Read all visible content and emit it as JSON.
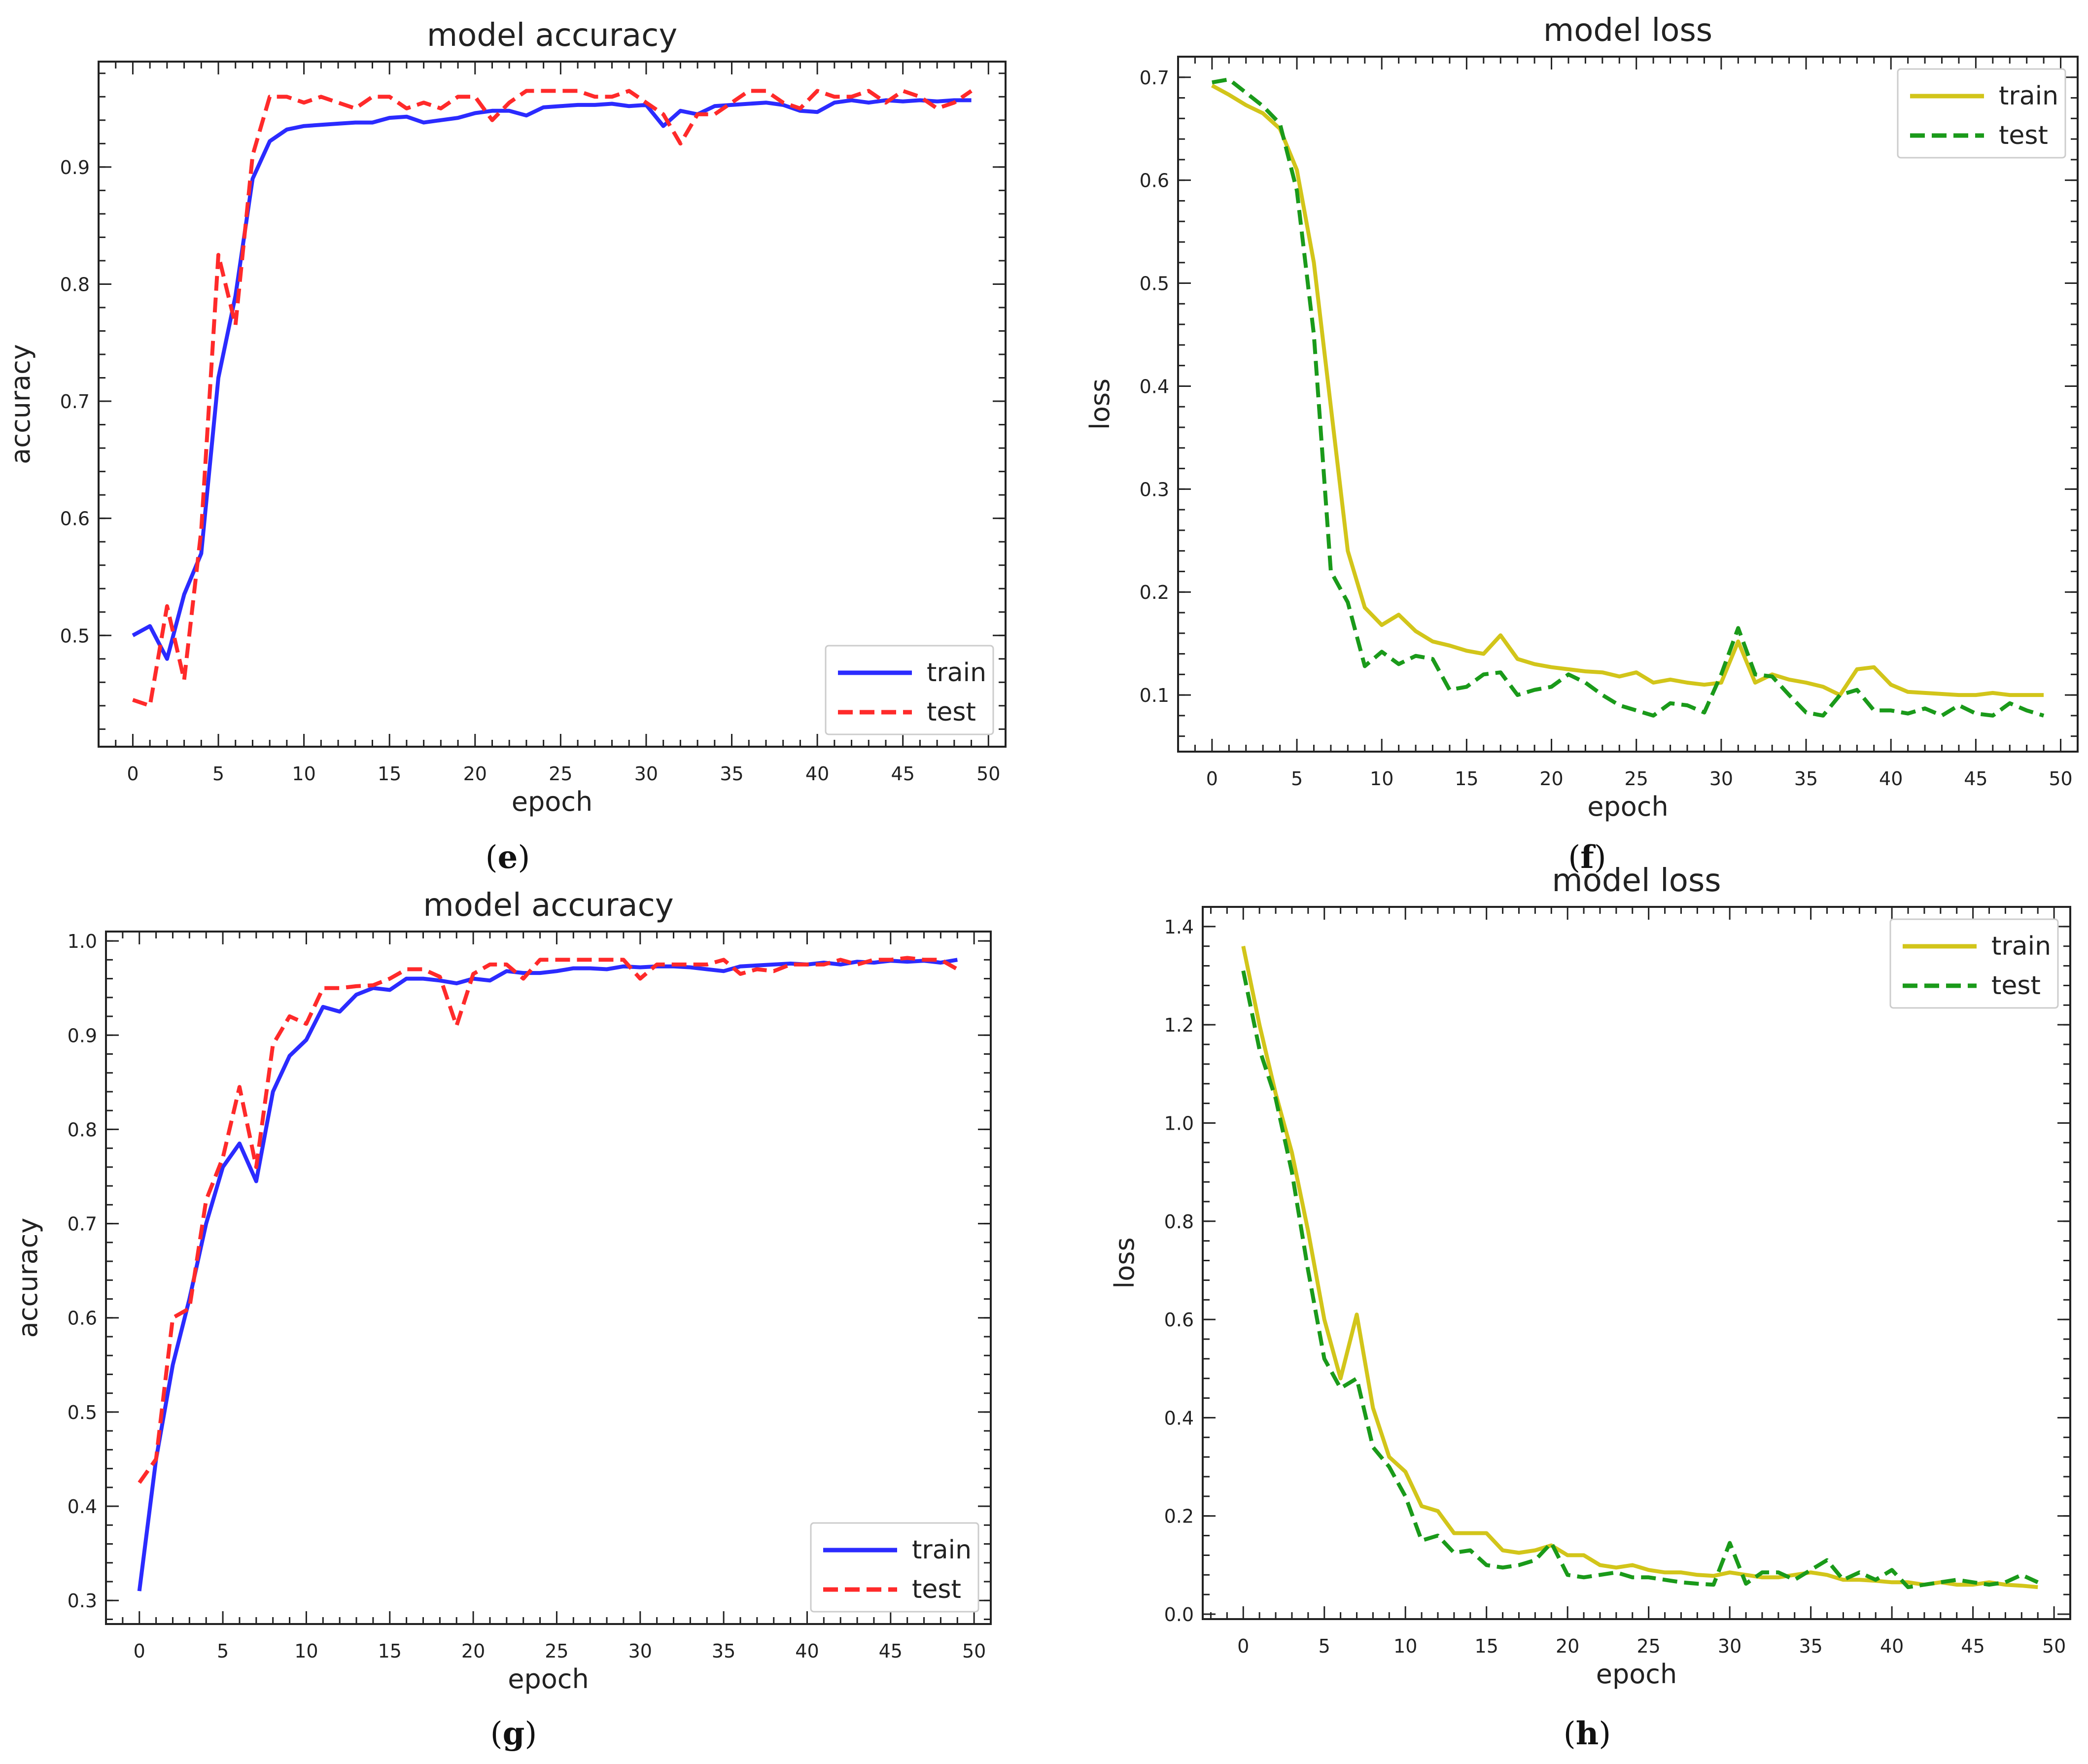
{
  "captions": {
    "e": "e",
    "f": "f",
    "g": "g",
    "h": "h"
  },
  "colors": {
    "acc_train": "#2b2bff",
    "acc_test": "#ff2a2a",
    "loss_train": "#d2c51a",
    "loss_test": "#1a9a1a"
  },
  "chart_data": [
    {
      "id": "e",
      "type": "line",
      "title": "model accuracy",
      "xlabel": "epoch",
      "ylabel": "accuracy",
      "xlim": [
        -2,
        51
      ],
      "ylim": [
        0.405,
        0.99
      ],
      "xticks": [
        0,
        5,
        10,
        15,
        20,
        25,
        30,
        35,
        40,
        45,
        50
      ],
      "yticks": [
        0.5,
        0.6,
        0.7,
        0.8,
        0.9
      ],
      "legend": "lower-right",
      "grid": false,
      "x": [
        0,
        1,
        2,
        3,
        4,
        5,
        6,
        7,
        8,
        9,
        10,
        11,
        12,
        13,
        14,
        15,
        16,
        17,
        18,
        19,
        20,
        21,
        22,
        23,
        24,
        25,
        26,
        27,
        28,
        29,
        30,
        31,
        32,
        33,
        34,
        35,
        36,
        37,
        38,
        39,
        40,
        41,
        42,
        43,
        44,
        45,
        46,
        47,
        48,
        49
      ],
      "series": [
        {
          "name": "train",
          "style": "solid",
          "color": "#2b2bff",
          "values": [
            0.5,
            0.508,
            0.48,
            0.535,
            0.57,
            0.72,
            0.79,
            0.89,
            0.922,
            0.932,
            0.935,
            0.936,
            0.937,
            0.938,
            0.938,
            0.942,
            0.943,
            0.938,
            0.94,
            0.942,
            0.946,
            0.948,
            0.948,
            0.944,
            0.951,
            0.952,
            0.953,
            0.953,
            0.954,
            0.952,
            0.953,
            0.935,
            0.948,
            0.945,
            0.952,
            0.953,
            0.954,
            0.955,
            0.953,
            0.948,
            0.947,
            0.955,
            0.957,
            0.955,
            0.957,
            0.956,
            0.957,
            0.956,
            0.957,
            0.957
          ]
        },
        {
          "name": "test",
          "style": "dashed",
          "color": "#ff2a2a",
          "values": [
            0.445,
            0.44,
            0.525,
            0.462,
            0.59,
            0.825,
            0.765,
            0.91,
            0.96,
            0.96,
            0.955,
            0.96,
            0.955,
            0.95,
            0.96,
            0.96,
            0.95,
            0.955,
            0.95,
            0.96,
            0.96,
            0.94,
            0.955,
            0.965,
            0.965,
            0.965,
            0.965,
            0.96,
            0.96,
            0.965,
            0.955,
            0.945,
            0.92,
            0.945,
            0.945,
            0.955,
            0.965,
            0.965,
            0.955,
            0.95,
            0.965,
            0.96,
            0.96,
            0.965,
            0.955,
            0.965,
            0.96,
            0.95,
            0.955,
            0.965
          ]
        }
      ]
    },
    {
      "id": "f",
      "type": "line",
      "title": "model loss",
      "xlabel": "epoch",
      "ylabel": "loss",
      "xlim": [
        -2,
        51
      ],
      "ylim": [
        0.045,
        0.72
      ],
      "xticks": [
        0,
        5,
        10,
        15,
        20,
        25,
        30,
        35,
        40,
        45,
        50
      ],
      "yticks": [
        0.1,
        0.2,
        0.3,
        0.4,
        0.5,
        0.6,
        0.7
      ],
      "legend": "top-right",
      "grid": false,
      "x": [
        0,
        1,
        2,
        3,
        4,
        5,
        6,
        7,
        8,
        9,
        10,
        11,
        12,
        13,
        14,
        15,
        16,
        17,
        18,
        19,
        20,
        21,
        22,
        23,
        24,
        25,
        26,
        27,
        28,
        29,
        30,
        31,
        32,
        33,
        34,
        35,
        36,
        37,
        38,
        39,
        40,
        41,
        42,
        43,
        44,
        45,
        46,
        47,
        48,
        49
      ],
      "series": [
        {
          "name": "train",
          "style": "solid",
          "color": "#d2c51a",
          "values": [
            0.692,
            0.683,
            0.673,
            0.665,
            0.65,
            0.61,
            0.52,
            0.38,
            0.24,
            0.185,
            0.168,
            0.178,
            0.162,
            0.152,
            0.148,
            0.143,
            0.14,
            0.158,
            0.135,
            0.13,
            0.127,
            0.125,
            0.123,
            0.122,
            0.118,
            0.122,
            0.112,
            0.115,
            0.112,
            0.11,
            0.112,
            0.152,
            0.112,
            0.12,
            0.115,
            0.112,
            0.108,
            0.1,
            0.125,
            0.127,
            0.11,
            0.103,
            0.102,
            0.101,
            0.1,
            0.1,
            0.102,
            0.1,
            0.1,
            0.1
          ]
        },
        {
          "name": "test",
          "style": "dashed",
          "color": "#1a9a1a",
          "values": [
            0.695,
            0.698,
            0.685,
            0.672,
            0.655,
            0.59,
            0.45,
            0.22,
            0.19,
            0.128,
            0.142,
            0.13,
            0.138,
            0.135,
            0.105,
            0.108,
            0.12,
            0.122,
            0.1,
            0.105,
            0.108,
            0.12,
            0.112,
            0.1,
            0.09,
            0.085,
            0.08,
            0.092,
            0.09,
            0.083,
            0.12,
            0.165,
            0.12,
            0.118,
            0.1,
            0.083,
            0.08,
            0.1,
            0.105,
            0.085,
            0.085,
            0.082,
            0.087,
            0.08,
            0.09,
            0.082,
            0.08,
            0.092,
            0.085,
            0.08
          ]
        }
      ]
    },
    {
      "id": "g",
      "type": "line",
      "title": "model accuracy",
      "xlabel": "epoch",
      "ylabel": "accuracy",
      "xlim": [
        -2,
        51
      ],
      "ylim": [
        0.275,
        1.01
      ],
      "xticks": [
        0,
        5,
        10,
        15,
        20,
        25,
        30,
        35,
        40,
        45,
        50
      ],
      "yticks": [
        0.3,
        0.4,
        0.5,
        0.6,
        0.7,
        0.8,
        0.9,
        1.0
      ],
      "legend": "lower-right",
      "grid": false,
      "x": [
        0,
        1,
        2,
        3,
        4,
        5,
        6,
        7,
        8,
        9,
        10,
        11,
        12,
        13,
        14,
        15,
        16,
        17,
        18,
        19,
        20,
        21,
        22,
        23,
        24,
        25,
        26,
        27,
        28,
        29,
        30,
        31,
        32,
        33,
        34,
        35,
        36,
        37,
        38,
        39,
        40,
        41,
        42,
        43,
        44,
        45,
        46,
        47,
        48,
        49
      ],
      "series": [
        {
          "name": "train",
          "style": "solid",
          "color": "#2b2bff",
          "values": [
            0.31,
            0.45,
            0.55,
            0.62,
            0.7,
            0.76,
            0.785,
            0.745,
            0.84,
            0.878,
            0.895,
            0.93,
            0.925,
            0.943,
            0.95,
            0.948,
            0.96,
            0.96,
            0.958,
            0.955,
            0.96,
            0.958,
            0.968,
            0.966,
            0.966,
            0.968,
            0.971,
            0.971,
            0.97,
            0.973,
            0.972,
            0.973,
            0.973,
            0.972,
            0.97,
            0.968,
            0.973,
            0.974,
            0.975,
            0.976,
            0.975,
            0.977,
            0.975,
            0.978,
            0.977,
            0.979,
            0.978,
            0.979,
            0.977,
            0.98
          ]
        },
        {
          "name": "test",
          "style": "dashed",
          "color": "#ff2a2a",
          "values": [
            0.425,
            0.45,
            0.6,
            0.61,
            0.725,
            0.77,
            0.845,
            0.76,
            0.89,
            0.92,
            0.912,
            0.95,
            0.95,
            0.952,
            0.953,
            0.96,
            0.97,
            0.97,
            0.962,
            0.91,
            0.965,
            0.975,
            0.975,
            0.96,
            0.98,
            0.98,
            0.98,
            0.98,
            0.98,
            0.98,
            0.96,
            0.975,
            0.975,
            0.975,
            0.975,
            0.98,
            0.965,
            0.97,
            0.968,
            0.975,
            0.975,
            0.975,
            0.98,
            0.975,
            0.98,
            0.98,
            0.982,
            0.98,
            0.98,
            0.97
          ]
        }
      ]
    },
    {
      "id": "h",
      "type": "line",
      "title": "model loss",
      "xlabel": "epoch",
      "ylabel": "loss",
      "xlim": [
        -2.5,
        51
      ],
      "ylim": [
        -0.01,
        1.44
      ],
      "xticks": [
        0,
        5,
        10,
        15,
        20,
        25,
        30,
        35,
        40,
        45,
        50
      ],
      "yticks": [
        0.0,
        0.2,
        0.4,
        0.6,
        0.8,
        1.0,
        1.2,
        1.4
      ],
      "legend": "top-right",
      "grid": false,
      "x": [
        0,
        1,
        2,
        3,
        4,
        5,
        6,
        7,
        8,
        9,
        10,
        11,
        12,
        13,
        14,
        15,
        16,
        17,
        18,
        19,
        20,
        21,
        22,
        23,
        24,
        25,
        26,
        27,
        28,
        29,
        30,
        31,
        32,
        33,
        34,
        35,
        36,
        37,
        38,
        39,
        40,
        41,
        42,
        43,
        44,
        45,
        46,
        47,
        48,
        49
      ],
      "series": [
        {
          "name": "train",
          "style": "solid",
          "color": "#d2c51a",
          "values": [
            1.36,
            1.2,
            1.06,
            0.94,
            0.78,
            0.6,
            0.48,
            0.61,
            0.42,
            0.32,
            0.29,
            0.22,
            0.21,
            0.165,
            0.165,
            0.165,
            0.13,
            0.125,
            0.13,
            0.14,
            0.12,
            0.12,
            0.1,
            0.095,
            0.1,
            0.09,
            0.085,
            0.085,
            0.08,
            0.078,
            0.085,
            0.08,
            0.075,
            0.075,
            0.08,
            0.085,
            0.08,
            0.07,
            0.07,
            0.068,
            0.065,
            0.065,
            0.06,
            0.065,
            0.06,
            0.06,
            0.065,
            0.06,
            0.058,
            0.055
          ]
        },
        {
          "name": "test",
          "style": "dashed",
          "color": "#1a9a1a",
          "values": [
            1.31,
            1.15,
            1.05,
            0.9,
            0.7,
            0.52,
            0.46,
            0.48,
            0.34,
            0.3,
            0.24,
            0.15,
            0.16,
            0.125,
            0.13,
            0.1,
            0.095,
            0.1,
            0.11,
            0.145,
            0.08,
            0.075,
            0.08,
            0.085,
            0.075,
            0.075,
            0.07,
            0.065,
            0.062,
            0.06,
            0.145,
            0.062,
            0.085,
            0.085,
            0.07,
            0.09,
            0.11,
            0.07,
            0.085,
            0.07,
            0.09,
            0.055,
            0.06,
            0.065,
            0.07,
            0.065,
            0.06,
            0.065,
            0.08,
            0.065
          ]
        }
      ]
    }
  ]
}
